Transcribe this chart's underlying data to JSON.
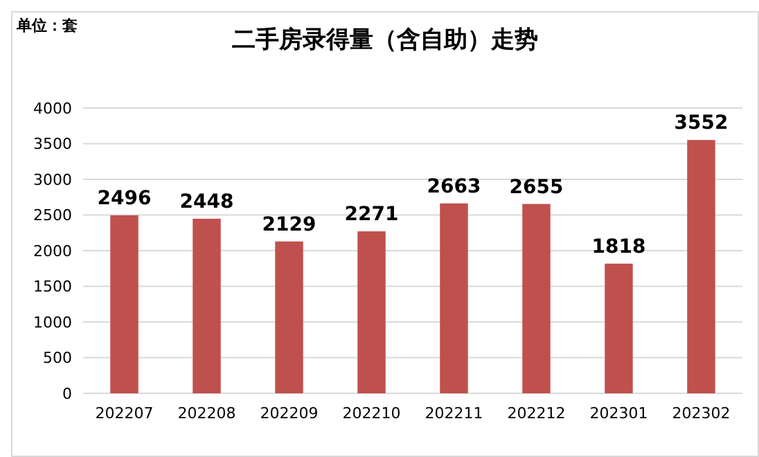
{
  "chart_data": {
    "type": "bar",
    "title": "二手房录得量（含自助）走势",
    "annotations": [
      "单位：套"
    ],
    "categories": [
      "202207",
      "202208",
      "202209",
      "202210",
      "202211",
      "202212",
      "202301",
      "202302"
    ],
    "values": [
      2496,
      2448,
      2129,
      2271,
      2663,
      2655,
      1818,
      3552
    ],
    "color": "#c0504d",
    "ylim": [
      0,
      4000
    ],
    "yticks": [
      0,
      500,
      1000,
      1500,
      2000,
      2500,
      3000,
      3500,
      4000
    ],
    "grid": "y",
    "data_labels": true
  }
}
